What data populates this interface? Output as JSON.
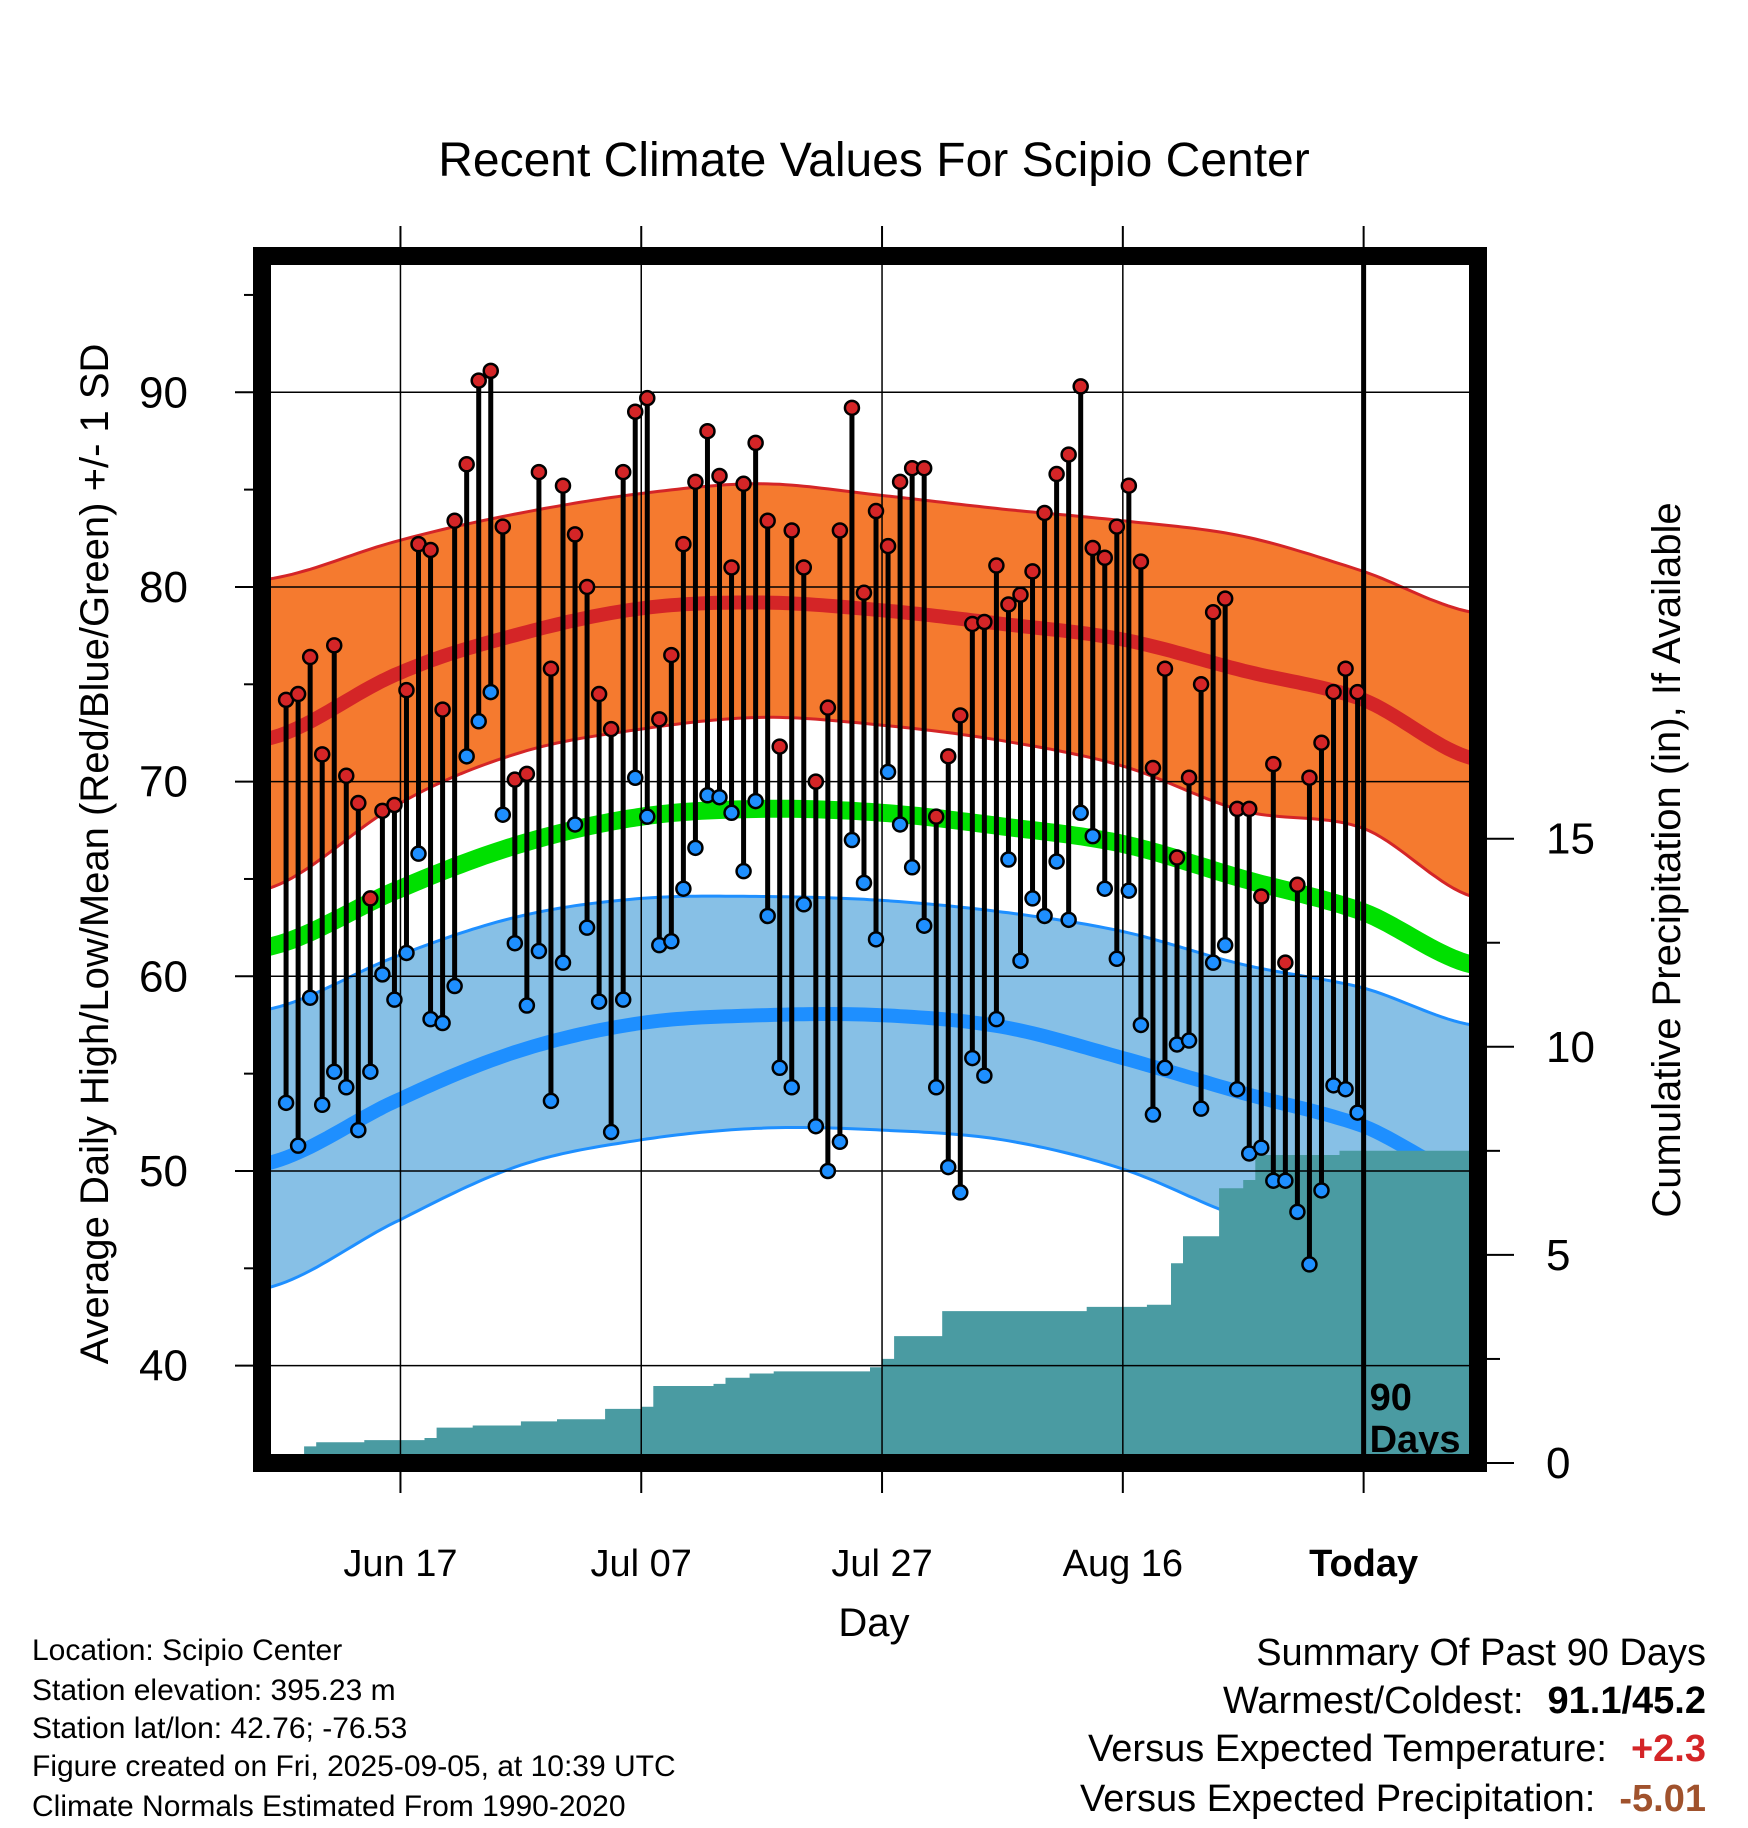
{
  "chart_data": {
    "type": "line",
    "title": "Recent Climate Values For Scipio Center",
    "xlabel": "Day",
    "ylabel": "Average Daily High/Low/Mean (Red/Blue/Green) +/- 1 SD",
    "y2label": "Cumulative Precipitation (in), If Available",
    "x_tick_labels": [
      "Jun 17",
      "Jul 07",
      "Jul 27",
      "Aug 16",
      "Today"
    ],
    "x_tick_days": [
      -80,
      -60,
      -40,
      -20,
      0
    ],
    "xlim_days": [
      -91.5,
      9.5
    ],
    "ylim": [
      35,
      97
    ],
    "y_ticks": [
      40,
      50,
      60,
      70,
      80,
      90
    ],
    "y2lim": [
      0,
      29
    ],
    "y2_ticks": [
      0,
      5,
      10,
      15
    ],
    "grid": true,
    "today_marker_label": [
      "90",
      "Days"
    ],
    "normals": {
      "days": [
        -91,
        -80,
        -70,
        -60,
        -50,
        -40,
        -30,
        -20,
        -10,
        0,
        9
      ],
      "high_mean": [
        72.2,
        75.6,
        77.6,
        78.9,
        79.2,
        78.8,
        78.1,
        77.3,
        75.7,
        74.2,
        71.2
      ],
      "high_sd_upper": [
        80.4,
        82.4,
        83.8,
        84.8,
        85.3,
        84.7,
        84.0,
        83.4,
        82.6,
        80.8,
        78.7
      ],
      "high_sd_lower": [
        64.5,
        68.9,
        71.5,
        72.7,
        73.3,
        72.9,
        72.1,
        70.8,
        68.5,
        67.6,
        64.1
      ],
      "mean": [
        61.5,
        64.5,
        66.8,
        68.2,
        68.6,
        68.4,
        67.7,
        66.8,
        65.0,
        63.3,
        60.6
      ],
      "low_mean": [
        50.4,
        53.7,
        56.2,
        57.6,
        58.0,
        58.0,
        57.4,
        55.8,
        54.0,
        52.3,
        49.6
      ],
      "low_sd_upper": [
        58.3,
        61.1,
        63.1,
        64.0,
        64.1,
        63.9,
        63.3,
        62.3,
        60.6,
        59.4,
        57.5
      ],
      "low_sd_lower": [
        44.0,
        47.5,
        50.3,
        51.6,
        52.2,
        52.1,
        51.6,
        50.1,
        47.6,
        46.2,
        43.6
      ]
    },
    "series": [
      {
        "name": "Daily High",
        "values": [
          74.2,
          74.5,
          76.4,
          71.4,
          77.0,
          70.3,
          68.9,
          64.0,
          68.5,
          68.8,
          74.7,
          82.2,
          81.9,
          73.7,
          83.4,
          86.3,
          90.6,
          91.1,
          83.1,
          70.1,
          70.4,
          85.9,
          75.8,
          85.2,
          82.7,
          80.0,
          74.5,
          72.7,
          85.9,
          89.0,
          89.7,
          73.2,
          76.5,
          82.2,
          85.4,
          88.0,
          85.7,
          81.0,
          85.3,
          87.4,
          83.4,
          71.8,
          82.9,
          81.0,
          70.0,
          73.8,
          82.9,
          89.2,
          79.7,
          83.9,
          82.1,
          85.4,
          86.1,
          86.1,
          68.2,
          71.3,
          73.4,
          78.1,
          78.2,
          81.1,
          79.1,
          79.6,
          80.8,
          83.8,
          85.8,
          86.8,
          90.3,
          82.0,
          81.5,
          83.1,
          85.2,
          81.3,
          70.7,
          75.8,
          66.1,
          70.2,
          75.0,
          78.7,
          79.4,
          68.6,
          68.6,
          64.1,
          70.9,
          60.7,
          64.7,
          70.2,
          72.0,
          74.6,
          75.8,
          74.6
        ]
      },
      {
        "name": "Daily Low",
        "values": [
          53.5,
          51.3,
          58.9,
          53.4,
          55.1,
          54.3,
          52.1,
          55.1,
          60.1,
          58.8,
          61.2,
          66.3,
          57.8,
          57.6,
          59.5,
          71.3,
          73.1,
          74.6,
          68.3,
          61.7,
          58.5,
          61.3,
          53.6,
          60.7,
          67.8,
          62.5,
          58.7,
          52.0,
          58.8,
          70.2,
          68.2,
          61.6,
          61.8,
          64.5,
          66.6,
          69.3,
          69.2,
          68.4,
          65.4,
          69.0,
          63.1,
          55.3,
          54.3,
          63.7,
          52.3,
          50.0,
          51.5,
          67.0,
          64.8,
          61.9,
          70.5,
          67.8,
          65.6,
          62.6,
          54.3,
          50.2,
          48.9,
          55.8,
          54.9,
          57.8,
          66.0,
          60.8,
          64.0,
          63.1,
          65.9,
          62.9,
          68.4,
          67.2,
          64.5,
          60.9,
          64.4,
          57.5,
          52.9,
          55.3,
          56.5,
          56.7,
          53.2,
          60.7,
          61.6,
          54.2,
          50.9,
          51.2,
          49.5,
          49.5,
          47.9,
          45.2,
          49.0,
          54.4,
          54.2,
          53.0
        ]
      },
      {
        "name": "Cumulative Precipitation",
        "values": [
          0.0,
          0.0,
          0.4,
          0.5,
          0.5,
          0.5,
          0.5,
          0.55,
          0.55,
          0.55,
          0.55,
          0.55,
          0.6,
          0.85,
          0.85,
          0.85,
          0.9,
          0.9,
          0.9,
          0.9,
          1.0,
          1.0,
          1.0,
          1.05,
          1.05,
          1.05,
          1.05,
          1.3,
          1.3,
          1.3,
          1.35,
          1.85,
          1.85,
          1.85,
          1.85,
          1.85,
          1.9,
          2.05,
          2.05,
          2.15,
          2.15,
          2.2,
          2.2,
          2.2,
          2.2,
          2.2,
          2.2,
          2.2,
          2.2,
          2.3,
          2.5,
          3.05,
          3.05,
          3.05,
          3.05,
          3.65,
          3.65,
          3.65,
          3.65,
          3.65,
          3.65,
          3.65,
          3.65,
          3.65,
          3.65,
          3.65,
          3.65,
          3.75,
          3.75,
          3.75,
          3.75,
          3.75,
          3.8,
          3.8,
          4.8,
          5.45,
          5.45,
          5.45,
          6.6,
          6.6,
          6.8,
          7.4,
          7.4,
          7.4,
          7.4,
          7.4,
          7.4,
          7.4,
          7.5,
          7.5
        ]
      }
    ]
  },
  "colors": {
    "high_band": "#f57a2f",
    "high_line": "#d42527",
    "mean_line": "#00e000",
    "low_band": "#87c0e6",
    "low_line": "#1e8fff",
    "high_point": "#d42527",
    "low_point": "#1e8fff",
    "precip": "#4a9ba2"
  },
  "meta": {
    "location": "Location: Scipio Center",
    "elevation": "Station elevation: 395.23 m",
    "latlon": "Station lat/lon: 42.76; -76.53",
    "created": "Figure created on Fri, 2025-09-05, at 10:39 UTC",
    "normals": "Climate Normals Estimated From 1990-2020"
  },
  "summary": {
    "title": "Summary Of Past 90 Days",
    "warm_cold_label": "Warmest/Coldest:",
    "warm_cold_value": "91.1/45.2",
    "temp_label": "Versus Expected Temperature:",
    "temp_value": "+2.3",
    "temp_color": "#d42527",
    "precip_label": "Versus Expected Precipitation:",
    "precip_value": "-5.01",
    "precip_color": "#a0522d"
  }
}
